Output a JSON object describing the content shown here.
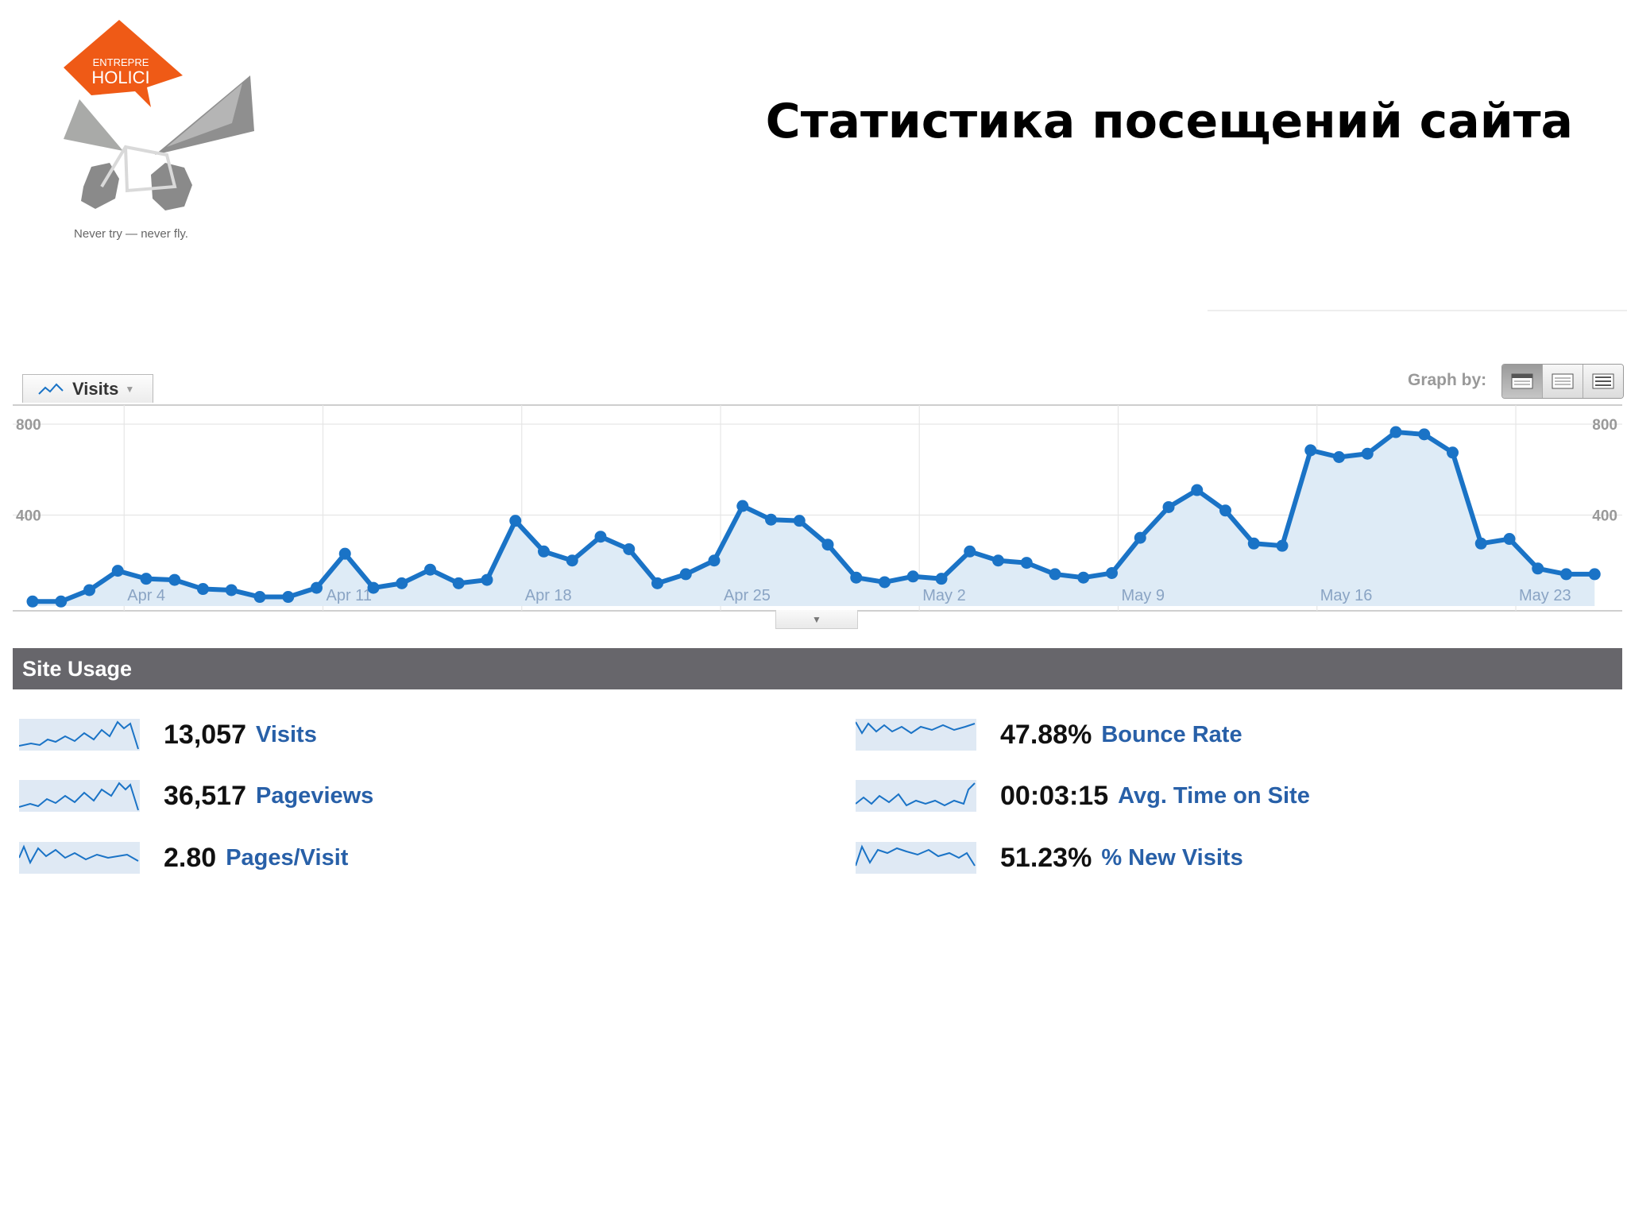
{
  "logo": {
    "text_line1": "ENTREPRE",
    "text_line2": "HOLICI",
    "tagline": "Never try — never fly."
  },
  "page_title": "Статистика посещений сайта",
  "metric_selector": {
    "label": "Visits"
  },
  "graph_by": {
    "label": "Graph by:"
  },
  "colors": {
    "accent": "#1a73c6",
    "fill": "#deebf6",
    "bar": "#67666b",
    "link": "#2860a8"
  },
  "chart_data": {
    "type": "line",
    "title": "",
    "series": [
      {
        "values": [
          20,
          20,
          70,
          155,
          120,
          115,
          75,
          70,
          40,
          40,
          80,
          230,
          80,
          100,
          160,
          100,
          115,
          375,
          240,
          200,
          305,
          250,
          100,
          140,
          200,
          440,
          380,
          375,
          270,
          125,
          105,
          130,
          120,
          240,
          200,
          190,
          140,
          125,
          145,
          300,
          435,
          510,
          420,
          275,
          265,
          685,
          655,
          670,
          765,
          755,
          675,
          275,
          295,
          165,
          140,
          140
        ]
      }
    ],
    "x_tick_labels": [
      "Apr 4",
      "Apr 11",
      "Apr 18",
      "Apr 25",
      "May 2",
      "May 9",
      "May 16",
      "May 23"
    ],
    "y_ticks": [
      400,
      800
    ],
    "y_tick_labels": [
      "400",
      "800"
    ],
    "ylim": [
      0,
      800
    ],
    "grid": true
  },
  "site_usage": {
    "title": "Site Usage",
    "stats": [
      {
        "value": "13,057",
        "label": "Visits"
      },
      {
        "value": "36,517",
        "label": "Pageviews"
      },
      {
        "value": "2.80",
        "label": "Pages/Visit"
      },
      {
        "value": "47.88%",
        "label": "Bounce Rate"
      },
      {
        "value": "00:03:15",
        "label": "Avg. Time on Site"
      },
      {
        "value": "51.23%",
        "label": "% New Visits"
      }
    ]
  }
}
